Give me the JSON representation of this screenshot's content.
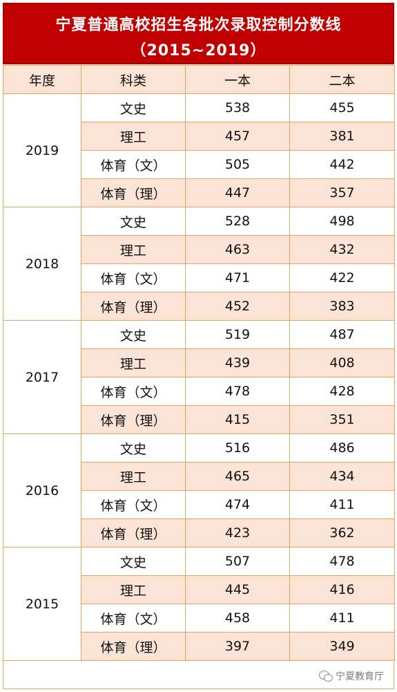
{
  "title": {
    "line1": "宁夏普通高校招生各批次录取控制分数线",
    "line2": "（2015~2019）"
  },
  "headers": {
    "year": "年度",
    "category": "科类",
    "tier1": "一本",
    "tier2": "二本"
  },
  "groups": [
    {
      "year": "2019",
      "rows": [
        {
          "category": "文史",
          "tier1": "538",
          "tier2": "455"
        },
        {
          "category": "理工",
          "tier1": "457",
          "tier2": "381"
        },
        {
          "category": "体育（文）",
          "tier1": "505",
          "tier2": "442"
        },
        {
          "category": "体育（理）",
          "tier1": "447",
          "tier2": "357"
        }
      ]
    },
    {
      "year": "2018",
      "rows": [
        {
          "category": "文史",
          "tier1": "528",
          "tier2": "498"
        },
        {
          "category": "理工",
          "tier1": "463",
          "tier2": "432"
        },
        {
          "category": "体育（文）",
          "tier1": "471",
          "tier2": "422"
        },
        {
          "category": "体育（理）",
          "tier1": "452",
          "tier2": "383"
        }
      ]
    },
    {
      "year": "2017",
      "rows": [
        {
          "category": "文史",
          "tier1": "519",
          "tier2": "487"
        },
        {
          "category": "理工",
          "tier1": "439",
          "tier2": "408"
        },
        {
          "category": "体育（文）",
          "tier1": "478",
          "tier2": "428"
        },
        {
          "category": "体育（理）",
          "tier1": "415",
          "tier2": "351"
        }
      ]
    },
    {
      "year": "2016",
      "rows": [
        {
          "category": "文史",
          "tier1": "516",
          "tier2": "486"
        },
        {
          "category": "理工",
          "tier1": "465",
          "tier2": "434"
        },
        {
          "category": "体育（文）",
          "tier1": "474",
          "tier2": "411"
        },
        {
          "category": "体育（理）",
          "tier1": "423",
          "tier2": "362"
        }
      ]
    },
    {
      "year": "2015",
      "rows": [
        {
          "category": "文史",
          "tier1": "507",
          "tier2": "478"
        },
        {
          "category": "理工",
          "tier1": "445",
          "tier2": "416"
        },
        {
          "category": "体育（文）",
          "tier1": "458",
          "tier2": "411"
        },
        {
          "category": "体育（理）",
          "tier1": "397",
          "tier2": "349"
        }
      ]
    }
  ],
  "watermark": {
    "text": "宁夏教育厅",
    "icon": "wechat-icon"
  },
  "colors": {
    "title_bg": "#c00000",
    "row_alt_bg": "#fbe3d6",
    "border": "#e6a35f"
  }
}
